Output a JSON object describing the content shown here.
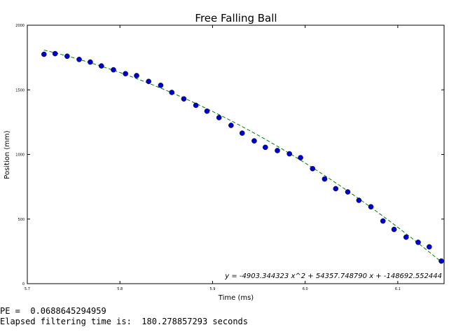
{
  "chart_data": {
    "type": "scatter",
    "title": "Free Falling Ball",
    "xlabel": "Time (ms)",
    "ylabel": "Position (mm)",
    "xlim": [
      5.7,
      6.15
    ],
    "ylim": [
      0,
      2000
    ],
    "x_ticks": [
      "5.7",
      "5.8",
      "5.9",
      "6.0",
      "6.1"
    ],
    "y_ticks": [
      "0",
      "500",
      "1000",
      "1500",
      "2000"
    ],
    "grid": false,
    "points": {
      "color": "#0000cc",
      "x": [
        5.718,
        5.73,
        5.743,
        5.756,
        5.768,
        5.78,
        5.793,
        5.806,
        5.818,
        5.831,
        5.844,
        5.856,
        5.869,
        5.882,
        5.894,
        5.907,
        5.92,
        5.932,
        5.945,
        5.957,
        5.97,
        5.983,
        5.995,
        6.008,
        6.021,
        6.033,
        6.046,
        6.058,
        6.071,
        6.084,
        6.096,
        6.109,
        6.122,
        6.134,
        6.147
      ],
      "y": [
        1775,
        1780,
        1760,
        1735,
        1715,
        1685,
        1655,
        1625,
        1610,
        1565,
        1535,
        1480,
        1430,
        1380,
        1335,
        1285,
        1225,
        1165,
        1105,
        1055,
        1030,
        1005,
        975,
        890,
        810,
        735,
        710,
        645,
        595,
        485,
        420,
        360,
        320,
        285,
        175
      ]
    },
    "fit": {
      "style": "dashed",
      "color": "#008000",
      "coefficients": [
        -4903.344323,
        54357.74879,
        -148692.552444
      ],
      "equation": "y = -4903.344323 x^2 + 54357.748790 x + -148692.552444"
    }
  },
  "console": {
    "line1": "PE =  0.0688645294959",
    "line2": "Elapsed filtering time is:  180.278857293 seconds"
  }
}
